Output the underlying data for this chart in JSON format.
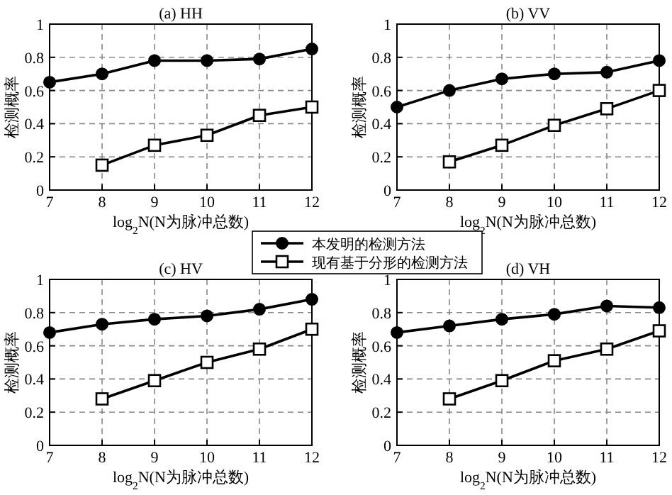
{
  "chart_data": [
    {
      "type": "line",
      "title": "(a) HH",
      "xlabel": "log$_{2}$N(N为脉冲总数)",
      "ylabel": "检测概率",
      "x": [
        7,
        8,
        9,
        10,
        11,
        12
      ],
      "xlim": [
        7,
        12
      ],
      "xticks": [
        7,
        8,
        9,
        10,
        11,
        12
      ],
      "ylim": [
        0,
        1
      ],
      "yticks": [
        0,
        0.2,
        0.4,
        0.6,
        0.8,
        1
      ],
      "grid": true,
      "legend": "bottom right",
      "line_style": "solid",
      "series": [
        {
          "name": "本发明的检测方法",
          "color": "#000000",
          "marker": "circle",
          "values": [
            0.65,
            0.7,
            0.78,
            0.78,
            0.79,
            0.85
          ]
        },
        {
          "name": "现有基于分形的检测方法",
          "color": "#000000",
          "marker": "square",
          "values": [
            null,
            0.15,
            0.27,
            0.33,
            0.45,
            0.5
          ]
        }
      ]
    },
    {
      "type": "line",
      "title": "(b) VV",
      "xlabel": "log$_{2}$N(N为脉冲总数)",
      "ylabel": "检测概率",
      "x": [
        7,
        8,
        9,
        10,
        11,
        12
      ],
      "xlim": [
        7,
        12
      ],
      "xticks": [
        7,
        8,
        9,
        10,
        11,
        12
      ],
      "ylim": [
        0,
        1
      ],
      "yticks": [
        0,
        0.2,
        0.4,
        0.6,
        0.8,
        1
      ],
      "grid": true,
      "line_style": "solid",
      "series": [
        {
          "color": "#000000",
          "marker": "circle",
          "values": [
            0.5,
            0.6,
            0.67,
            0.7,
            0.71,
            0.78
          ]
        },
        {
          "color": "#000000",
          "marker": "square",
          "values": [
            null,
            0.17,
            0.27,
            0.39,
            0.49,
            0.6
          ]
        }
      ]
    },
    {
      "type": "line",
      "title": "(c) HV",
      "xlabel": "log$_{2}$N(N为脉冲总数)",
      "ylabel": "检测概率",
      "x": [
        7,
        8,
        9,
        10,
        11,
        12
      ],
      "xlim": [
        7,
        12
      ],
      "xticks": [
        7,
        8,
        9,
        10,
        11,
        12
      ],
      "ylim": [
        0,
        1
      ],
      "yticks": [
        0,
        0.2,
        0.4,
        0.6,
        0.8,
        1
      ],
      "grid": true,
      "line_style": "solid",
      "series": [
        {
          "color": "#000000",
          "marker": "circle",
          "values": [
            0.68,
            0.73,
            0.76,
            0.78,
            0.82,
            0.88
          ]
        },
        {
          "color": "#000000",
          "marker": "square",
          "values": [
            null,
            0.28,
            0.39,
            0.5,
            0.58,
            0.7
          ]
        }
      ]
    },
    {
      "type": "line",
      "title": "(d) VH",
      "xlabel": "log$_{2}$N(N为脉冲总数)",
      "ylabel": "检测概率",
      "x": [
        7,
        8,
        9,
        10,
        11,
        12
      ],
      "xlim": [
        7,
        12
      ],
      "xticks": [
        7,
        8,
        9,
        10,
        11,
        12
      ],
      "ylim": [
        0,
        1
      ],
      "yticks": [
        0,
        0.2,
        0.4,
        0.6,
        0.8,
        1
      ],
      "grid": true,
      "line_style": "solid",
      "series": [
        {
          "color": "#000000",
          "marker": "circle",
          "values": [
            0.68,
            0.72,
            0.76,
            0.79,
            0.84,
            0.83
          ]
        },
        {
          "color": "#000000",
          "marker": "square",
          "values": [
            null,
            0.28,
            0.39,
            0.51,
            0.58,
            0.69
          ]
        }
      ]
    }
  ]
}
